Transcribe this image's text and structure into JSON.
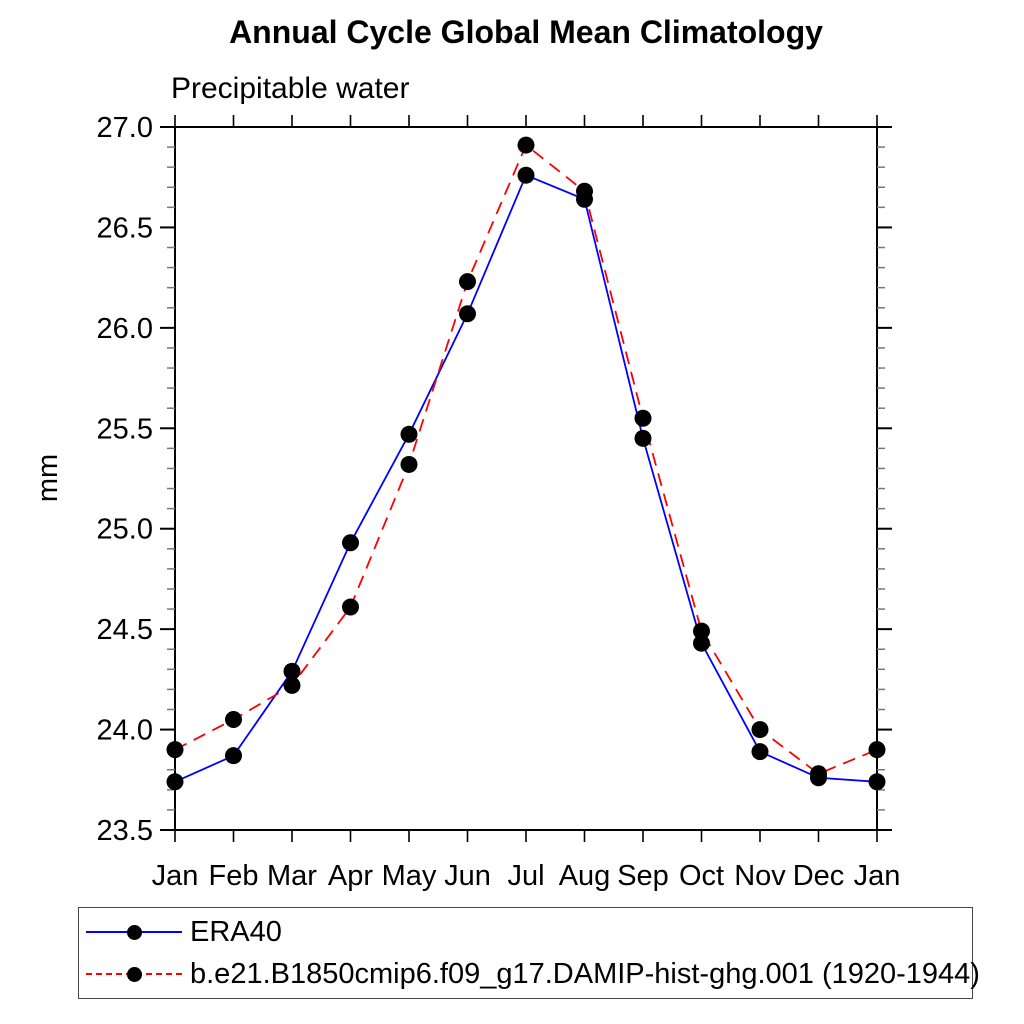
{
  "title": "Annual Cycle Global Mean Climatology",
  "subtitle": "Precipitable water",
  "y_axis": {
    "label": "mm",
    "min": 23.5,
    "max": 27.0,
    "major_step": 0.5,
    "minor_step": 0.1,
    "tick_labels": [
      "23.5",
      "24.0",
      "24.5",
      "25.0",
      "25.5",
      "26.0",
      "26.5",
      "27.0"
    ]
  },
  "x_axis": {
    "tick_labels": [
      "Jan",
      "Feb",
      "Mar",
      "Apr",
      "May",
      "Jun",
      "Jul",
      "Aug",
      "Sep",
      "Oct",
      "Nov",
      "Dec",
      "Jan"
    ]
  },
  "colors": {
    "era40_line": "#0000ff",
    "model_line": "#ff0000",
    "marker": "#000000",
    "axis": "#000000",
    "minor_tick": "#777777"
  },
  "chart_data": {
    "type": "line",
    "title": "Annual Cycle Global Mean Climatology",
    "subtitle": "Precipitable water",
    "xlabel": "",
    "ylabel": "mm",
    "ylim": [
      23.5,
      27.0
    ],
    "y_major_step": 0.5,
    "y_minor_step": 0.1,
    "grid": false,
    "legend_position": "bottom",
    "categories": [
      "Jan",
      "Feb",
      "Mar",
      "Apr",
      "May",
      "Jun",
      "Jul",
      "Aug",
      "Sep",
      "Oct",
      "Nov",
      "Dec",
      "Jan"
    ],
    "series": [
      {
        "name": "ERA40",
        "color": "#0000ff",
        "line_style": "solid",
        "marker": "filled-circle",
        "marker_color": "#000000",
        "values": [
          23.74,
          23.87,
          24.29,
          24.93,
          25.47,
          26.07,
          26.76,
          26.64,
          25.45,
          24.43,
          23.89,
          23.76,
          23.74
        ]
      },
      {
        "name": "b.e21.B1850cmip6.f09_g17.DAMIP-hist-ghg.001 (1920-1944)",
        "color": "#ff0000",
        "line_style": "dashed",
        "marker": "filled-circle",
        "marker_color": "#000000",
        "values": [
          23.9,
          24.05,
          24.22,
          24.61,
          25.32,
          26.23,
          26.91,
          26.68,
          25.55,
          24.49,
          24.0,
          23.78,
          23.9
        ]
      }
    ]
  }
}
